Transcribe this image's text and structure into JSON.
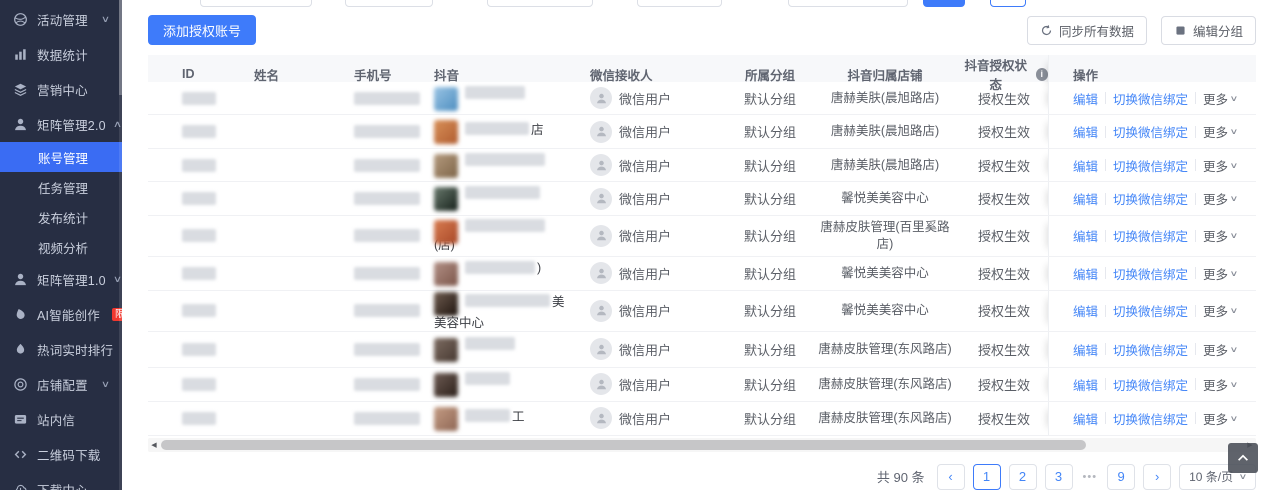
{
  "colors": {
    "primary": "#3e7bfa",
    "sidebar_active": "#3a6cf3",
    "link_blue": "#4486f7",
    "badge_red": "#f0372e",
    "sidebar_bg": "#272e43"
  },
  "sidebar": {
    "items": [
      {
        "key": "activity-mgmt",
        "label": "活动管理",
        "icon": "activity-icon",
        "chevron": "down"
      },
      {
        "key": "data-stats",
        "label": "数据统计",
        "icon": "bar-chart-icon"
      },
      {
        "key": "marketing-center",
        "label": "营销中心",
        "icon": "layers-icon"
      },
      {
        "key": "matrix-mgmt-2",
        "label": "矩阵管理2.0",
        "icon": "user-icon",
        "chevron": "up"
      },
      {
        "key": "account-mgmt",
        "label": "账号管理",
        "sub": true,
        "active": true
      },
      {
        "key": "task-mgmt",
        "label": "任务管理",
        "sub": true
      },
      {
        "key": "publish-stats",
        "label": "发布统计",
        "sub": true
      },
      {
        "key": "video-analysis",
        "label": "视频分析",
        "sub": true
      },
      {
        "key": "matrix-mgmt-1",
        "label": "矩阵管理1.0",
        "icon": "user-icon",
        "chevron": "down"
      },
      {
        "key": "ai-creation",
        "label": "AI智能创作",
        "icon": "ink-drop-icon",
        "badge": "限免"
      },
      {
        "key": "hotword-ranking",
        "label": "热词实时排行",
        "icon": "drop-icon"
      },
      {
        "key": "shop-config",
        "label": "店铺配置",
        "icon": "target-icon",
        "chevron": "down"
      },
      {
        "key": "site-message",
        "label": "站内信",
        "icon": "message-icon"
      },
      {
        "key": "qrcode-download",
        "label": "二维码下载",
        "icon": "code-icon"
      },
      {
        "key": "download-center",
        "label": "下载中心",
        "icon": "cloud-download-icon"
      }
    ]
  },
  "toolbar": {
    "add_button": "添加授权账号",
    "sync_button": "同步所有数据",
    "edit_group_button": "编辑分组"
  },
  "table": {
    "columns": [
      {
        "key": "id",
        "label": "ID"
      },
      {
        "key": "name",
        "label": "姓名"
      },
      {
        "key": "phone",
        "label": "手机号"
      },
      {
        "key": "dy",
        "label": "抖音"
      },
      {
        "key": "wx",
        "label": "微信接收人"
      },
      {
        "key": "group",
        "label": "所属分组"
      },
      {
        "key": "store",
        "label": "抖音归属店铺"
      },
      {
        "key": "status",
        "label": "抖音授权状态",
        "info_icon": true
      },
      {
        "key": "op",
        "label": "操作"
      }
    ],
    "actions": {
      "edit": "编辑",
      "switch": "切换微信绑定",
      "more": "更多"
    },
    "rows": [
      {
        "wechat": "微信用户",
        "group": "默认分组",
        "store": "唐赫美肤(晨旭路店)",
        "status": "授权生效",
        "douyin_fragment": "",
        "douyin_line2": "",
        "avatar_colors": [
          "#9ac4e4",
          "#4d8ec0"
        ]
      },
      {
        "wechat": "微信用户",
        "group": "默认分组",
        "store": "唐赫美肤(晨旭路店)",
        "status": "授权生效",
        "douyin_fragment": "店",
        "douyin_line2": "",
        "avatar_colors": [
          "#d89058",
          "#b05c30"
        ]
      },
      {
        "wechat": "微信用户",
        "group": "默认分组",
        "store": "唐赫美肤(晨旭路店)",
        "status": "授权生效",
        "douyin_fragment": "",
        "douyin_line2": "",
        "avatar_colors": [
          "#b49a7e",
          "#7e6548"
        ]
      },
      {
        "wechat": "微信用户",
        "group": "默认分组",
        "store": "馨悦美美容中心",
        "status": "授权生效",
        "douyin_fragment": "",
        "douyin_line2": "",
        "avatar_colors": [
          "#6a7a6e",
          "#15201a"
        ]
      },
      {
        "wechat": "微信用户",
        "group": "默认分组",
        "store": "唐赫皮肤管理(百里奚路店)",
        "status": "授权生效",
        "douyin_fragment": "",
        "douyin_line2": "(店)",
        "avatar_colors": [
          "#d87c50",
          "#a84828"
        ]
      },
      {
        "wechat": "微信用户",
        "group": "默认分组",
        "store": "馨悦美美容中心",
        "status": "授权生效",
        "douyin_fragment": ")",
        "douyin_line2": "",
        "avatar_colors": [
          "#b29086",
          "#7c564a"
        ]
      },
      {
        "wechat": "微信用户",
        "group": "默认分组",
        "store": "馨悦美美容中心",
        "status": "授权生效",
        "douyin_fragment": "美",
        "douyin_line2": "美容中心",
        "avatar_colors": [
          "#6f5c50",
          "#1f150f"
        ]
      },
      {
        "wechat": "微信用户",
        "group": "默认分组",
        "store": "唐赫皮肤管理(东风路店)",
        "status": "授权生效",
        "douyin_fragment": "",
        "douyin_line2": "",
        "avatar_colors": [
          "#7d6c62",
          "#463830"
        ]
      },
      {
        "wechat": "微信用户",
        "group": "默认分组",
        "store": "唐赫皮肤管理(东风路店)",
        "status": "授权生效",
        "douyin_fragment": "",
        "douyin_line2": "",
        "avatar_colors": [
          "#6e5c54",
          "#2c201a"
        ]
      },
      {
        "wechat": "微信用户",
        "group": "默认分组",
        "store": "唐赫皮肤管理(东风路店)",
        "status": "授权生效",
        "douyin_fragment": "工",
        "douyin_line2": "",
        "avatar_colors": [
          "#c49c84",
          "#8e6654"
        ]
      }
    ]
  },
  "pagination": {
    "total": "共 90 条",
    "prev": "‹",
    "next": "›",
    "pages": [
      "1",
      "2",
      "3",
      "•••",
      "9"
    ],
    "active_page": "1",
    "page_size": "10 条/页"
  }
}
